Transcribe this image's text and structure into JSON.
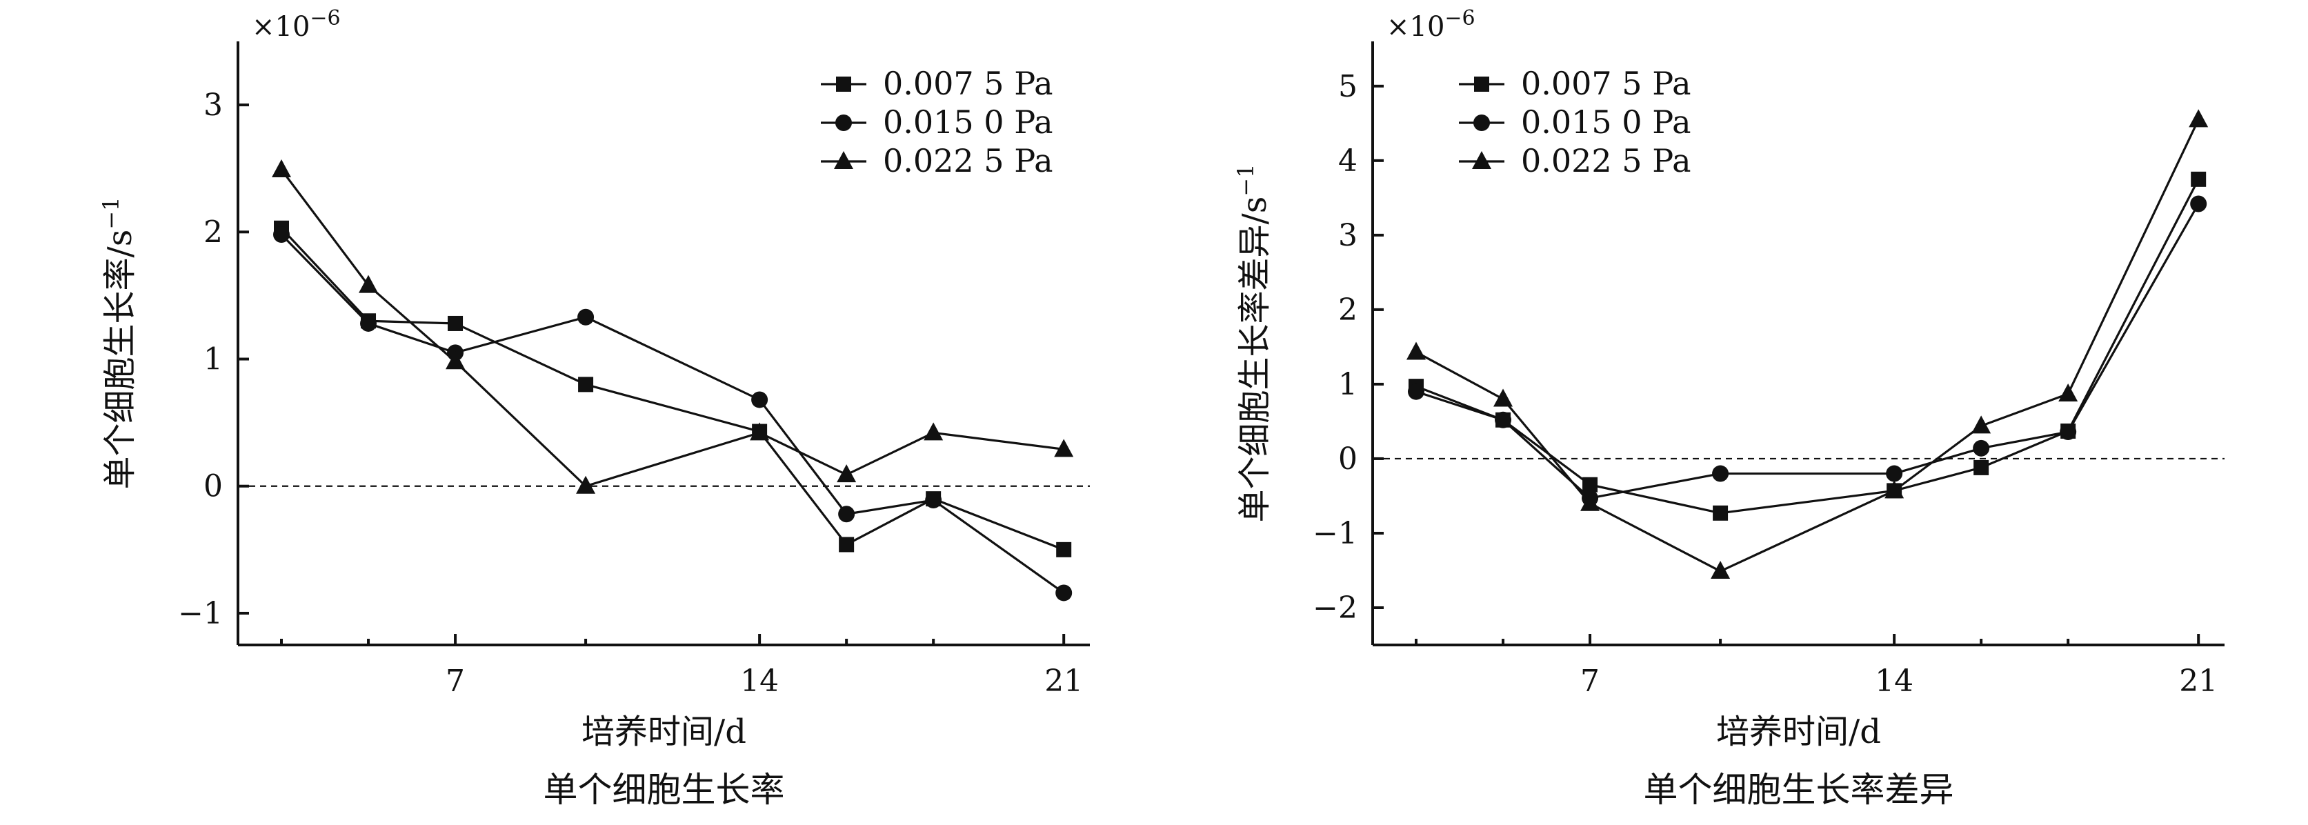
{
  "chart_data": [
    {
      "type": "line",
      "title": "单个细胞生长率",
      "xlabel": "培养时间/d",
      "ylabel": "单个细胞生长率/s",
      "ylabel_sup": "−1",
      "y_multiplier": "×10",
      "y_multiplier_exp": "−6",
      "xlim": [
        2,
        21.6
      ],
      "ylim": [
        -1.25,
        3.5
      ],
      "x_ticks": [
        7,
        14,
        21
      ],
      "x_tick_labels": [
        "7",
        "14",
        "21"
      ],
      "x_minor_ticks": [
        3,
        5,
        10,
        16,
        18
      ],
      "y_ticks": [
        -1,
        0,
        1,
        2,
        3
      ],
      "y_tick_labels": [
        "−1",
        "0",
        "1",
        "2",
        "3"
      ],
      "reference_line_y": 0,
      "legend_position": "top-right",
      "x": [
        3,
        5,
        7,
        10,
        14,
        16,
        18,
        21
      ],
      "series": [
        {
          "name": "0.007 5 Pa",
          "marker": "square",
          "values": [
            2.03,
            1.3,
            1.28,
            0.8,
            0.43,
            -0.46,
            -0.1,
            -0.5
          ]
        },
        {
          "name": "0.015 0 Pa",
          "marker": "circle",
          "values": [
            1.98,
            1.28,
            1.05,
            1.33,
            0.68,
            -0.22,
            -0.11,
            -0.84
          ]
        },
        {
          "name": "0.022 5 Pa",
          "marker": "triangle",
          "values": [
            2.49,
            1.58,
            0.98,
            0.0,
            0.42,
            0.09,
            0.42,
            0.29
          ]
        }
      ]
    },
    {
      "type": "line",
      "title": "单个细胞生长率差异",
      "xlabel": "培养时间/d",
      "ylabel": "单个细胞生长率差异/s",
      "ylabel_sup": "−1",
      "y_multiplier": "×10",
      "y_multiplier_exp": "−6",
      "xlim": [
        2,
        21.6
      ],
      "ylim": [
        -2.5,
        5.6
      ],
      "x_ticks": [
        7,
        14,
        21
      ],
      "x_tick_labels": [
        "7",
        "14",
        "21"
      ],
      "x_minor_ticks": [
        3,
        5,
        10,
        16,
        18
      ],
      "y_ticks": [
        -2,
        -1,
        0,
        1,
        2,
        3,
        4,
        5
      ],
      "y_tick_labels": [
        "−2",
        "−1",
        "0",
        "1",
        "2",
        "3",
        "4",
        "5"
      ],
      "reference_line_y": 0,
      "legend_position": "top-left",
      "x": [
        3,
        5,
        7,
        10,
        14,
        16,
        18,
        21
      ],
      "series": [
        {
          "name": "0.007 5 Pa",
          "marker": "square",
          "values": [
            0.97,
            0.52,
            -0.35,
            -0.73,
            -0.43,
            -0.12,
            0.37,
            3.75
          ]
        },
        {
          "name": "0.015 0 Pa",
          "marker": "circle",
          "values": [
            0.9,
            0.52,
            -0.53,
            -0.2,
            -0.2,
            0.14,
            0.36,
            3.42
          ]
        },
        {
          "name": "0.022 5 Pa",
          "marker": "triangle",
          "values": [
            1.43,
            0.8,
            -0.6,
            -1.51,
            -0.43,
            0.44,
            0.87,
            4.55
          ]
        }
      ]
    }
  ]
}
